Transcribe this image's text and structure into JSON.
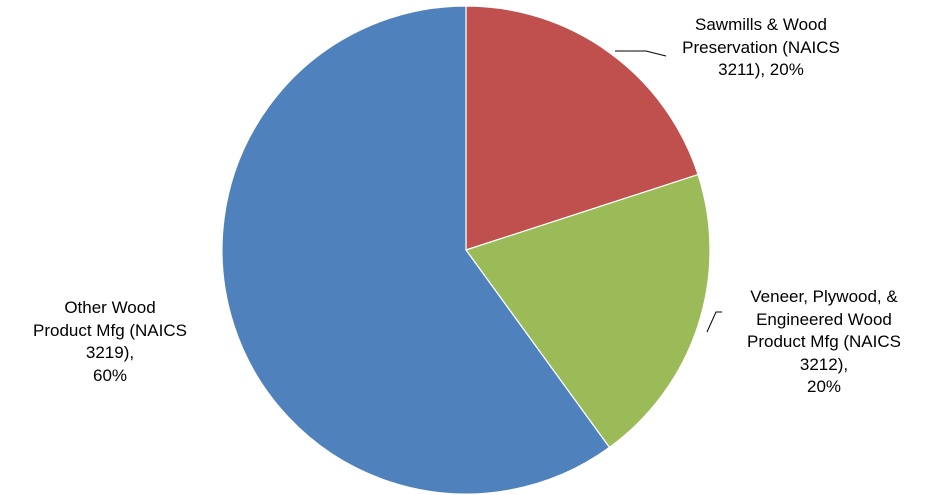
{
  "chart_data": {
    "type": "pie",
    "title": "",
    "start_angle_deg": 0,
    "direction": "clockwise",
    "slices": [
      {
        "category": "Sawmills & Wood Preservation (NAICS 3211)",
        "value": 20,
        "color": "#C0504D",
        "label_lines": [
          "Sawmills & Wood",
          "Preservation (NAICS",
          "3211), 20%"
        ]
      },
      {
        "category": "Veneer, Plywood, & Engineered Wood Product Mfg (NAICS 3212)",
        "value": 20,
        "color": "#9BBB59",
        "label_lines": [
          "Veneer, Plywood, &",
          "Engineered Wood",
          "Product Mfg (NAICS",
          "3212),",
          "20%"
        ]
      },
      {
        "category": "Other Wood Product Mfg (NAICS 3219)",
        "value": 60,
        "color": "#4F81BD",
        "label_lines": [
          "Other Wood",
          "Product Mfg (NAICS",
          "3219),",
          "60%"
        ]
      }
    ]
  }
}
